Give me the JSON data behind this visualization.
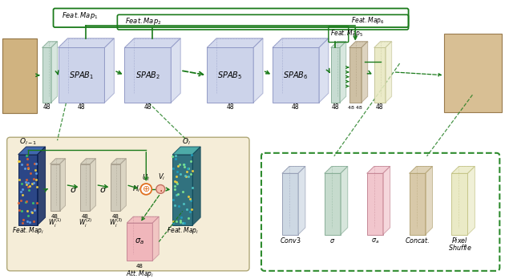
{
  "bg": "#ffffff",
  "green": "#1a7a1a",
  "blue_face": "#c5cde8",
  "blue_edge": "#8890c0",
  "gray_face": "#ccd4cc",
  "gray_edge": "#909890",
  "tan_face": "#c8b898",
  "tan_edge": "#a09070",
  "yellow_face": "#e8e8c0",
  "yellow_edge": "#c0c090",
  "pink_face": "#f0b0b8",
  "pink_edge": "#c08090",
  "box_bg": "#f5edd8",
  "box_edge": "#b0a878",
  "leg_bg": "#ffffff",
  "leg_edge": "#2e8b2e",
  "slab_gray": "#c8cec8",
  "slab_gray_e": "#909890",
  "slab_mint": "#c0d8cc",
  "slab_mint_e": "#80a890"
}
